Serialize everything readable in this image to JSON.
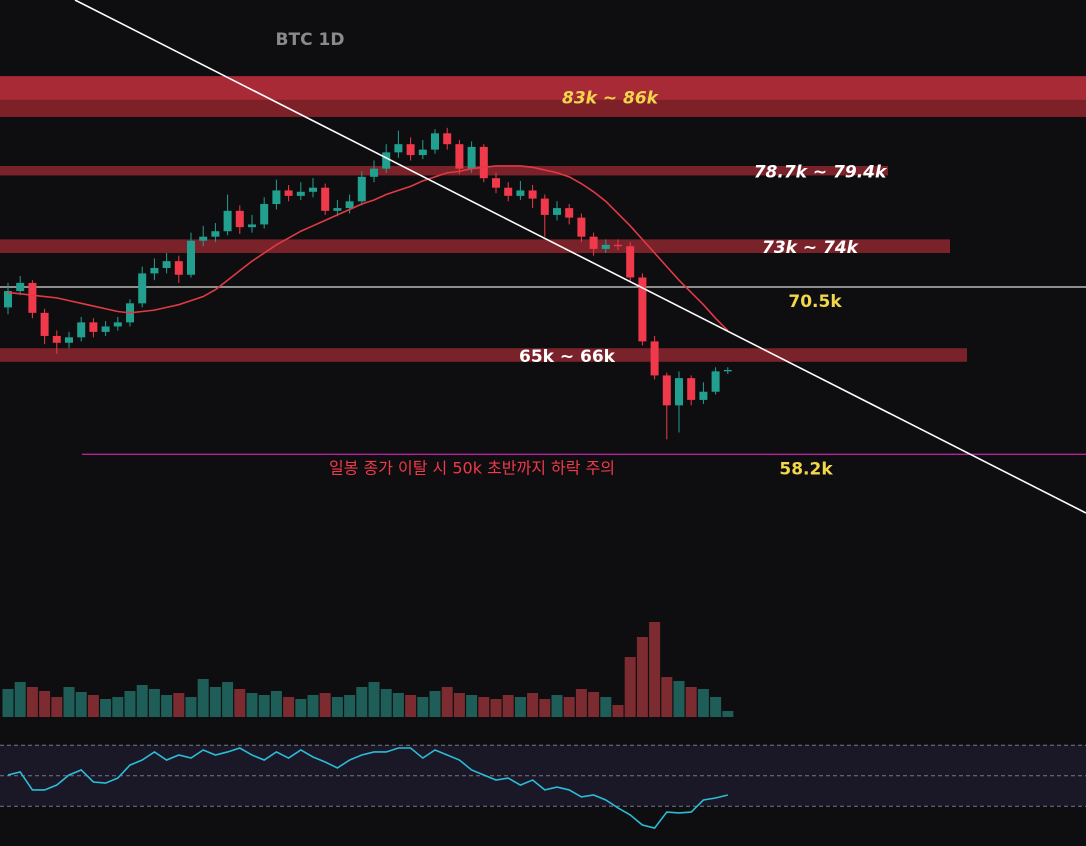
{
  "chart_data": {
    "type": "candlestick",
    "title": "BTC 1D",
    "ylim": [
      51.9,
      91.6
    ],
    "colors": {
      "up": "#22a08f",
      "down": "#f0394a",
      "volume_up": "#1f5e58",
      "volume_down": "#7c2b30",
      "ma": "#e03a45",
      "rsi": "#2bbcd8"
    },
    "open": [
      69.0,
      70.2,
      70.8,
      68.6,
      66.9,
      66.4,
      66.8,
      67.9,
      67.2,
      67.6,
      67.9,
      69.3,
      71.5,
      71.9,
      72.4,
      71.4,
      73.9,
      74.2,
      74.6,
      76.1,
      74.9,
      75.1,
      76.6,
      77.6,
      77.2,
      77.5,
      77.8,
      76.1,
      76.3,
      76.8,
      78.6,
      79.2,
      80.4,
      81.0,
      80.2,
      80.6,
      81.8,
      81.0,
      79.2,
      80.8,
      78.5,
      77.8,
      77.2,
      77.6,
      77.0,
      75.8,
      76.3,
      75.6,
      74.2,
      73.3,
      73.6,
      73.5,
      71.2,
      66.5,
      64.0,
      61.8,
      63.8,
      62.2,
      62.8,
      64.3
    ],
    "high": [
      70.8,
      71.3,
      71.0,
      68.9,
      67.3,
      67.2,
      68.3,
      68.2,
      68.0,
      68.3,
      69.6,
      72.0,
      72.6,
      73.0,
      72.8,
      74.5,
      75.0,
      75.2,
      77.3,
      76.5,
      75.8,
      77.1,
      78.4,
      78.0,
      78.2,
      78.5,
      78.1,
      76.9,
      77.3,
      79.0,
      79.8,
      81.0,
      82.0,
      81.5,
      81.3,
      82.1,
      82.2,
      81.3,
      81.2,
      81.0,
      78.9,
      78.2,
      78.3,
      78.0,
      77.3,
      76.8,
      76.6,
      75.9,
      74.5,
      74.0,
      74.0,
      73.8,
      71.5,
      66.9,
      64.2,
      64.3,
      64.0,
      63.5,
      64.6,
      64.6
    ],
    "low": [
      68.5,
      69.9,
      68.2,
      66.3,
      65.6,
      66.0,
      66.5,
      66.8,
      66.9,
      67.3,
      67.6,
      69.0,
      71.0,
      71.5,
      70.8,
      71.2,
      73.5,
      73.8,
      74.3,
      74.4,
      74.5,
      74.8,
      76.2,
      76.8,
      76.9,
      77.1,
      75.8,
      75.7,
      75.9,
      76.5,
      78.2,
      78.9,
      80.0,
      79.8,
      79.9,
      80.3,
      80.6,
      78.8,
      78.9,
      78.2,
      77.4,
      76.8,
      76.9,
      76.3,
      74.2,
      75.4,
      75.1,
      73.8,
      72.8,
      73.0,
      73.2,
      70.9,
      66.2,
      63.7,
      59.3,
      59.8,
      61.8,
      61.9,
      62.6,
      64.1
    ],
    "close": [
      70.2,
      70.8,
      68.6,
      66.9,
      66.4,
      66.8,
      67.9,
      67.2,
      67.6,
      67.9,
      69.3,
      71.5,
      71.9,
      72.4,
      71.4,
      73.9,
      74.2,
      74.6,
      76.1,
      74.9,
      75.1,
      76.6,
      77.6,
      77.2,
      77.5,
      77.8,
      76.1,
      76.3,
      76.8,
      78.6,
      79.2,
      80.4,
      81.0,
      80.2,
      80.6,
      81.8,
      81.0,
      79.2,
      80.8,
      78.5,
      77.8,
      77.2,
      77.6,
      77.0,
      75.8,
      76.3,
      75.6,
      74.2,
      73.3,
      73.6,
      73.5,
      71.2,
      66.5,
      64.0,
      61.8,
      63.8,
      62.2,
      62.8,
      64.3,
      64.4
    ],
    "ma": [
      70.1,
      70.0,
      69.9,
      69.8,
      69.7,
      69.5,
      69.3,
      69.1,
      68.9,
      68.7,
      68.6,
      68.7,
      68.8,
      69.0,
      69.2,
      69.5,
      69.8,
      70.3,
      71.0,
      71.7,
      72.4,
      73.0,
      73.6,
      74.1,
      74.6,
      75.0,
      75.4,
      75.8,
      76.2,
      76.6,
      76.9,
      77.3,
      77.6,
      77.9,
      78.3,
      78.6,
      78.9,
      79.0,
      79.2,
      79.3,
      79.4,
      79.4,
      79.4,
      79.3,
      79.1,
      78.9,
      78.6,
      78.1,
      77.5,
      76.8,
      75.9,
      75.0,
      74.0,
      73.0,
      72.0,
      71.0,
      70.1,
      69.2,
      68.2,
      67.3
    ],
    "volume": {
      "ylim": [
        0,
        100
      ],
      "values": [
        28,
        35,
        30,
        26,
        20,
        30,
        25,
        22,
        18,
        20,
        26,
        32,
        28,
        22,
        24,
        20,
        38,
        30,
        35,
        28,
        24,
        22,
        26,
        20,
        18,
        22,
        24,
        20,
        22,
        30,
        35,
        28,
        24,
        22,
        20,
        26,
        30,
        24,
        22,
        20,
        18,
        22,
        20,
        24,
        18,
        22,
        20,
        28,
        25,
        20,
        12,
        60,
        80,
        95,
        40,
        36,
        30,
        28,
        20,
        6
      ]
    },
    "rsi": {
      "ylim": [
        0,
        100
      ],
      "levels": [
        70,
        50,
        30
      ],
      "values": [
        50.5,
        52.5,
        40.7,
        40.7,
        43.9,
        50.5,
        53.8,
        45.9,
        45.2,
        48.5,
        57.0,
        60.3,
        65.6,
        60.3,
        63.6,
        61.6,
        66.9,
        63.6,
        65.6,
        68.2,
        63.6,
        60.3,
        65.6,
        61.6,
        66.9,
        62.3,
        59.0,
        55.1,
        60.3,
        63.6,
        65.6,
        65.6,
        68.2,
        68.2,
        61.6,
        66.9,
        63.6,
        60.3,
        53.8,
        50.5,
        47.2,
        48.5,
        43.9,
        47.2,
        40.7,
        42.6,
        40.7,
        36.1,
        37.4,
        34.1,
        28.9,
        24.3,
        17.7,
        15.7,
        26.2,
        25.6,
        26.2,
        34.1,
        35.4,
        37.4
      ]
    },
    "zones": [
      {
        "label": "83k ~ 86k",
        "low": 83,
        "high": 86
      },
      {
        "label": "78.7k ~ 79.4k",
        "low": 78.7,
        "high": 79.4
      },
      {
        "label": "73k ~ 74k",
        "low": 73,
        "high": 74
      },
      {
        "label": "65k ~ 66k",
        "low": 65,
        "high": 66
      }
    ],
    "levels": [
      {
        "label": "70.5k",
        "value": 70.5,
        "color": "#b8b8b8"
      },
      {
        "label": "58.2k",
        "value": 58.2,
        "color": "#b4229e"
      }
    ],
    "annotation": "일봉 종가 이탈 시 50k 초반까지 하락 주의"
  }
}
